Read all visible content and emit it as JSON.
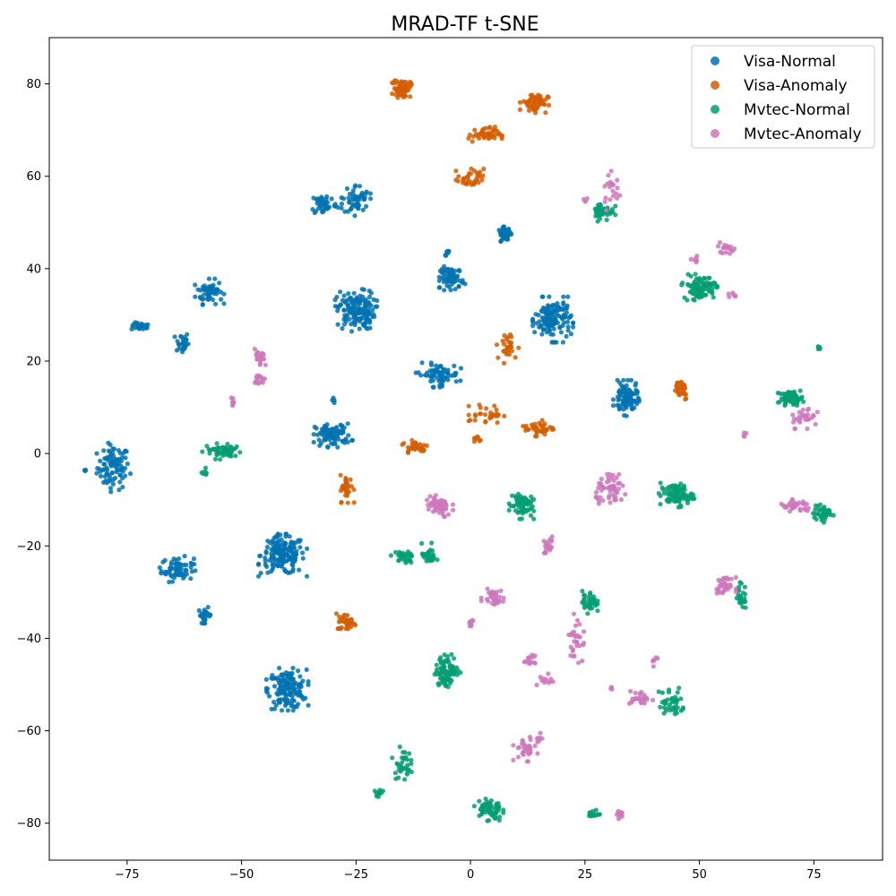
{
  "chart_data": {
    "type": "scatter",
    "title": "MRAD-TF t-SNE",
    "xlabel": "",
    "ylabel": "",
    "xlim": [
      -92,
      90
    ],
    "ylim": [
      -88,
      90
    ],
    "xticks": [
      -75,
      -50,
      -25,
      0,
      25,
      50,
      75
    ],
    "yticks": [
      -80,
      -60,
      -40,
      -20,
      0,
      20,
      40,
      60,
      80
    ],
    "grid": false,
    "legend_position": "top-right",
    "series": [
      {
        "name": "Visa-Normal",
        "color": "#0173b2",
        "clusters": [
          {
            "x": -78,
            "y": -3,
            "sx": 2.2,
            "sy": 3.0,
            "n": 90
          },
          {
            "x": -84,
            "y": -4,
            "sx": 0.4,
            "sy": 0.6,
            "n": 3
          },
          {
            "x": -72,
            "y": 27.5,
            "sx": 1.3,
            "sy": 0.5,
            "n": 20
          },
          {
            "x": -63,
            "y": 24,
            "sx": 0.9,
            "sy": 1.5,
            "n": 30
          },
          {
            "x": -57,
            "y": 35,
            "sx": 1.8,
            "sy": 1.6,
            "n": 60
          },
          {
            "x": -64,
            "y": -25,
            "sx": 2.2,
            "sy": 1.6,
            "n": 65
          },
          {
            "x": -58,
            "y": -35,
            "sx": 0.9,
            "sy": 1.0,
            "n": 25
          },
          {
            "x": -41,
            "y": -22,
            "sx": 3.0,
            "sy": 2.6,
            "n": 170
          },
          {
            "x": -40,
            "y": -51,
            "sx": 2.6,
            "sy": 2.6,
            "n": 150
          },
          {
            "x": -32,
            "y": 54,
            "sx": 1.8,
            "sy": 1.5,
            "n": 45
          },
          {
            "x": -25,
            "y": 55,
            "sx": 1.8,
            "sy": 2.0,
            "n": 55
          },
          {
            "x": -25,
            "y": 31,
            "sx": 2.6,
            "sy": 2.6,
            "n": 150
          },
          {
            "x": -30,
            "y": 4,
            "sx": 2.4,
            "sy": 1.5,
            "n": 90
          },
          {
            "x": -30,
            "y": 11.5,
            "sx": 0.4,
            "sy": 0.4,
            "n": 4
          },
          {
            "x": -7,
            "y": 17,
            "sx": 2.8,
            "sy": 1.5,
            "n": 70
          },
          {
            "x": -4,
            "y": 38,
            "sx": 1.6,
            "sy": 1.5,
            "n": 70
          },
          {
            "x": -5,
            "y": 43.5,
            "sx": 0.5,
            "sy": 0.4,
            "n": 6
          },
          {
            "x": 7.5,
            "y": 47.5,
            "sx": 0.9,
            "sy": 0.9,
            "n": 45
          },
          {
            "x": 18,
            "y": 29,
            "sx": 2.5,
            "sy": 2.8,
            "n": 140
          },
          {
            "x": 34,
            "y": 12,
            "sx": 1.6,
            "sy": 2.2,
            "n": 100
          }
        ]
      },
      {
        "name": "Visa-Anomaly",
        "color": "#d55e00",
        "clusters": [
          {
            "x": -15,
            "y": 79,
            "sx": 1.2,
            "sy": 1.2,
            "n": 60
          },
          {
            "x": 14,
            "y": 76,
            "sx": 1.8,
            "sy": 1.3,
            "n": 55
          },
          {
            "x": 3,
            "y": 69,
            "sx": 2.2,
            "sy": 1.0,
            "n": 45
          },
          {
            "x": 0,
            "y": 59.5,
            "sx": 1.8,
            "sy": 1.3,
            "n": 35
          },
          {
            "x": 8,
            "y": 23,
            "sx": 1.5,
            "sy": 2.0,
            "n": 30
          },
          {
            "x": 3.5,
            "y": 8.5,
            "sx": 2.2,
            "sy": 1.2,
            "n": 30
          },
          {
            "x": 1.5,
            "y": 3,
            "sx": 0.5,
            "sy": 0.5,
            "n": 8
          },
          {
            "x": 15,
            "y": 5.5,
            "sx": 2.0,
            "sy": 1.0,
            "n": 40
          },
          {
            "x": 46,
            "y": 14,
            "sx": 1.0,
            "sy": 1.5,
            "n": 35
          },
          {
            "x": -12,
            "y": 1.5,
            "sx": 1.8,
            "sy": 1.0,
            "n": 30
          },
          {
            "x": -27,
            "y": -7.5,
            "sx": 0.9,
            "sy": 1.8,
            "n": 35
          },
          {
            "x": -27,
            "y": -36.5,
            "sx": 1.3,
            "sy": 1.1,
            "n": 35
          }
        ]
      },
      {
        "name": "Mvtec-Normal",
        "color": "#029e73",
        "clusters": [
          {
            "x": 29,
            "y": 52.5,
            "sx": 1.5,
            "sy": 1.3,
            "n": 45
          },
          {
            "x": 50,
            "y": 36,
            "sx": 2.2,
            "sy": 1.6,
            "n": 95
          },
          {
            "x": 70,
            "y": 12,
            "sx": 1.6,
            "sy": 0.9,
            "n": 60
          },
          {
            "x": 76,
            "y": 23,
            "sx": 0.3,
            "sy": 0.3,
            "n": 6
          },
          {
            "x": 45,
            "y": -9,
            "sx": 2.2,
            "sy": 1.5,
            "n": 90
          },
          {
            "x": 77,
            "y": -13,
            "sx": 1.3,
            "sy": 1.1,
            "n": 35
          },
          {
            "x": 11,
            "y": -11,
            "sx": 1.6,
            "sy": 1.8,
            "n": 65
          },
          {
            "x": -54,
            "y": 0.5,
            "sx": 2.6,
            "sy": 1.0,
            "n": 55
          },
          {
            "x": -58,
            "y": -4,
            "sx": 0.5,
            "sy": 0.5,
            "n": 8
          },
          {
            "x": -15,
            "y": -22.5,
            "sx": 1.6,
            "sy": 0.8,
            "n": 30
          },
          {
            "x": -9,
            "y": -22,
            "sx": 1.0,
            "sy": 1.5,
            "n": 30
          },
          {
            "x": 26,
            "y": -32,
            "sx": 1.0,
            "sy": 1.5,
            "n": 35
          },
          {
            "x": 59,
            "y": -31,
            "sx": 0.8,
            "sy": 1.8,
            "n": 25
          },
          {
            "x": -5,
            "y": -47,
            "sx": 1.6,
            "sy": 2.0,
            "n": 90
          },
          {
            "x": 44,
            "y": -54,
            "sx": 1.8,
            "sy": 2.2,
            "n": 40
          },
          {
            "x": -15,
            "y": -67,
            "sx": 1.2,
            "sy": 2.0,
            "n": 35
          },
          {
            "x": -20,
            "y": -73.5,
            "sx": 0.5,
            "sy": 0.7,
            "n": 10
          },
          {
            "x": 4,
            "y": -77,
            "sx": 1.8,
            "sy": 1.6,
            "n": 60
          },
          {
            "x": 27,
            "y": -78,
            "sx": 0.7,
            "sy": 0.6,
            "n": 15
          }
        ]
      },
      {
        "name": "Mvtec-Anomaly",
        "color": "#cc78bc",
        "clusters": [
          {
            "x": 31,
            "y": 57,
            "sx": 1.5,
            "sy": 2.5,
            "n": 20
          },
          {
            "x": 25,
            "y": 55,
            "sx": 0.5,
            "sy": 0.5,
            "n": 4
          },
          {
            "x": 56,
            "y": 44.5,
            "sx": 1.3,
            "sy": 0.7,
            "n": 18
          },
          {
            "x": 49,
            "y": 42,
            "sx": 0.7,
            "sy": 0.5,
            "n": 6
          },
          {
            "x": 57,
            "y": 34,
            "sx": 0.6,
            "sy": 0.5,
            "n": 6
          },
          {
            "x": -46,
            "y": 20.5,
            "sx": 0.7,
            "sy": 1.2,
            "n": 25
          },
          {
            "x": -46,
            "y": 16,
            "sx": 0.6,
            "sy": 1.0,
            "n": 15
          },
          {
            "x": -52,
            "y": 11,
            "sx": 0.3,
            "sy": 0.7,
            "n": 8
          },
          {
            "x": 73,
            "y": 8,
            "sx": 2.0,
            "sy": 1.5,
            "n": 30
          },
          {
            "x": 60,
            "y": 4.2,
            "sx": 0.3,
            "sy": 0.3,
            "n": 4
          },
          {
            "x": 31,
            "y": -8,
            "sx": 2.2,
            "sy": 2.0,
            "n": 55
          },
          {
            "x": 71,
            "y": -11.5,
            "sx": 2.2,
            "sy": 0.9,
            "n": 35
          },
          {
            "x": -7,
            "y": -11.5,
            "sx": 1.8,
            "sy": 1.4,
            "n": 60
          },
          {
            "x": 17,
            "y": -20,
            "sx": 0.8,
            "sy": 1.3,
            "n": 20
          },
          {
            "x": 5,
            "y": -31,
            "sx": 1.5,
            "sy": 1.0,
            "n": 35
          },
          {
            "x": 0,
            "y": -36,
            "sx": 0.6,
            "sy": 1.2,
            "n": 10
          },
          {
            "x": 23,
            "y": -40,
            "sx": 1.0,
            "sy": 3.0,
            "n": 30
          },
          {
            "x": 55.5,
            "y": -28.5,
            "sx": 1.4,
            "sy": 1.0,
            "n": 35
          },
          {
            "x": 13,
            "y": -45,
            "sx": 0.7,
            "sy": 0.8,
            "n": 15
          },
          {
            "x": 17,
            "y": -49,
            "sx": 1.5,
            "sy": 0.8,
            "n": 12
          },
          {
            "x": 37,
            "y": -53,
            "sx": 1.6,
            "sy": 1.0,
            "n": 25
          },
          {
            "x": 40,
            "y": -45,
            "sx": 0.5,
            "sy": 0.6,
            "n": 6
          },
          {
            "x": 12,
            "y": -64,
            "sx": 1.5,
            "sy": 1.5,
            "n": 35
          },
          {
            "x": 15,
            "y": -61.5,
            "sx": 0.6,
            "sy": 0.8,
            "n": 8
          },
          {
            "x": 32.5,
            "y": -78,
            "sx": 0.7,
            "sy": 0.6,
            "n": 12
          },
          {
            "x": 31,
            "y": -51,
            "sx": 0.4,
            "sy": 0.4,
            "n": 4
          }
        ]
      }
    ]
  }
}
